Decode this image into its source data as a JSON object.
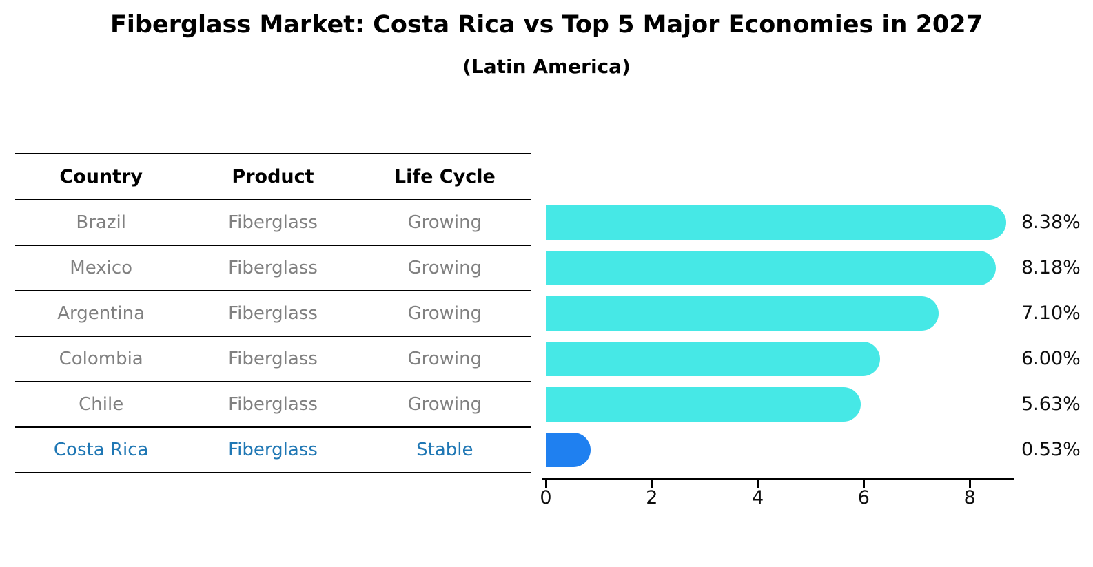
{
  "title": "Fiberglass Market: Costa Rica vs Top 5 Major Economies in 2027",
  "subtitle": "(Latin America)",
  "table": {
    "headers": [
      "Country",
      "Product",
      "Life Cycle"
    ],
    "rows": [
      {
        "country": "Brazil",
        "product": "Fiberglass",
        "life_cycle": "Growing",
        "highlight": false
      },
      {
        "country": "Mexico",
        "product": "Fiberglass",
        "life_cycle": "Growing",
        "highlight": false
      },
      {
        "country": "Argentina",
        "product": "Fiberglass",
        "life_cycle": "Growing",
        "highlight": false
      },
      {
        "country": "Colombia",
        "product": "Fiberglass",
        "life_cycle": "Growing",
        "highlight": false
      },
      {
        "country": "Chile",
        "product": "Fiberglass",
        "life_cycle": "Growing",
        "highlight": false
      },
      {
        "country": "Costa Rica",
        "product": "Fiberglass",
        "life_cycle": "Stable",
        "highlight": true
      }
    ]
  },
  "chart_data": {
    "type": "bar",
    "orientation": "horizontal",
    "categories": [
      "Brazil",
      "Mexico",
      "Argentina",
      "Colombia",
      "Chile",
      "Costa Rica"
    ],
    "values": [
      8.38,
      8.18,
      7.1,
      6.0,
      5.63,
      0.53
    ],
    "value_labels": [
      "8.38%",
      "8.18%",
      "7.10%",
      "6.00%",
      "5.63%",
      "0.53%"
    ],
    "bar_colors": [
      "#46E8E6",
      "#46E8E6",
      "#46E8E6",
      "#46E8E6",
      "#46E8E6",
      "#1F80F0"
    ],
    "x_ticks": [
      0,
      2,
      4,
      6,
      8
    ],
    "xlim": [
      0,
      8.9
    ],
    "xlabel": "",
    "ylabel": "",
    "grid": false,
    "legend": "none",
    "value_unit": "percent"
  },
  "colors": {
    "bar_default": "#46E8E6",
    "bar_highlight": "#1F80F0",
    "row_text": "#808080",
    "highlight_text": "#1F77B4",
    "axis": "#000000",
    "background": "#FFFFFF"
  }
}
